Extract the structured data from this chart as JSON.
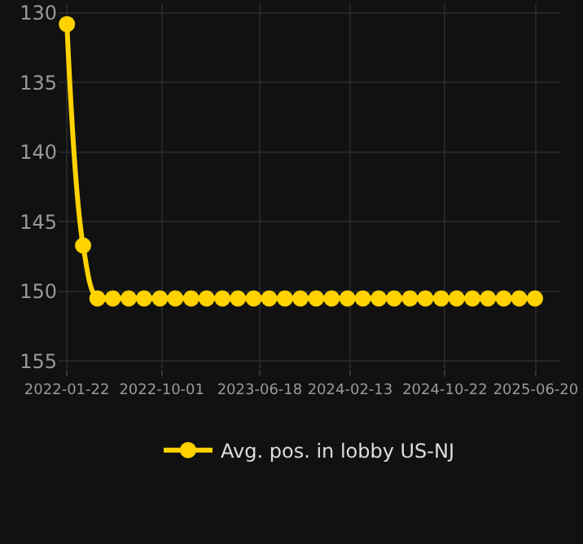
{
  "chart_data": {
    "type": "line",
    "x": [
      "2022-01-22",
      "2022-03-06",
      "2022-04-13",
      "2022-05-24",
      "2022-07-05",
      "2022-08-15",
      "2022-09-26",
      "2022-11-06",
      "2022-12-18",
      "2023-01-28",
      "2023-03-11",
      "2023-04-21",
      "2023-06-02",
      "2023-07-13",
      "2023-08-24",
      "2023-10-04",
      "2023-11-15",
      "2023-12-26",
      "2024-02-06",
      "2024-03-18",
      "2024-04-29",
      "2024-06-09",
      "2024-07-21",
      "2024-08-31",
      "2024-10-12",
      "2024-11-22",
      "2025-01-03",
      "2025-02-13",
      "2025-03-27",
      "2025-05-07",
      "2025-06-18"
    ],
    "series": [
      {
        "name": "Avg. pos. in lobby US-NJ",
        "color": "#ffd200",
        "values": [
          130.8,
          146.7,
          150.5,
          150.5,
          150.5,
          150.5,
          150.5,
          150.5,
          150.5,
          150.5,
          150.5,
          150.5,
          150.5,
          150.5,
          150.5,
          150.5,
          150.5,
          150.5,
          150.5,
          150.5,
          150.5,
          150.5,
          150.5,
          150.5,
          150.5,
          150.5,
          150.5,
          150.5,
          150.5,
          150.5,
          150.5
        ]
      }
    ],
    "xlim": [
      "2021-12-31",
      "2025-08-24"
    ],
    "xticks": [
      "2022-01-22",
      "2022-10-01",
      "2023-06-18",
      "2024-02-13",
      "2024-10-22",
      "2025-06-20"
    ],
    "ylim": [
      155.5,
      129.3
    ],
    "yticks": [
      130,
      135,
      140,
      145,
      150,
      155
    ],
    "grid": true,
    "legend": "bottom",
    "marker": "circle",
    "line_style": "solid"
  }
}
